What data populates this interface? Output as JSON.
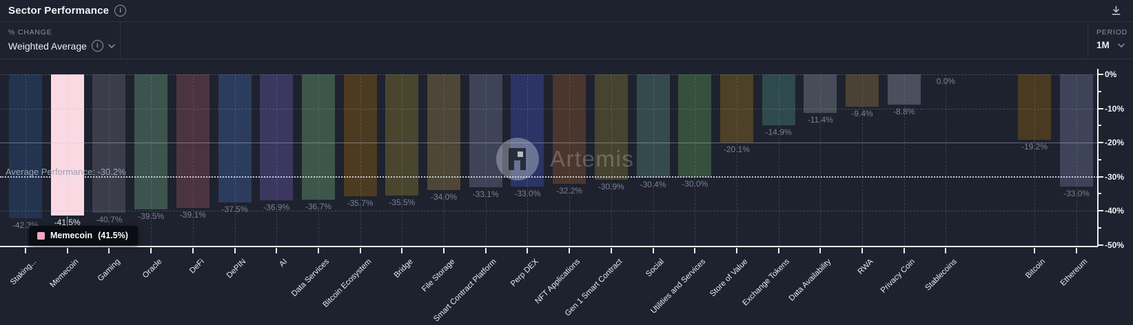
{
  "header": {
    "title": "Sector Performance",
    "title_info_icon": "i",
    "download_icon": "download-arrow"
  },
  "controls": {
    "change_label": "% CHANGE",
    "change_value": "Weighted Average",
    "change_info_icon": "i",
    "period_label": "PERIOD",
    "period_value": "1M"
  },
  "watermark": {
    "text": "Artemis"
  },
  "tooltip": {
    "name": "Memecoin",
    "value_display": "(41.5%)",
    "swatch_color": "#F2A8BC"
  },
  "average_line": {
    "label": "Average Performance: -30.2%",
    "value": -30.2
  },
  "chart_data": {
    "type": "bar",
    "title": "Sector Performance",
    "aggregation": "Weighted Average",
    "period": "1M",
    "ylabel": "% change",
    "ylim": [
      -50,
      0
    ],
    "y_ticks": [
      "0%",
      "-10%",
      "-20%",
      "-30%",
      "-40%",
      "-50%"
    ],
    "grid": "dashed horizontal and vertical, solid line at -20%",
    "average_performance": -30.2,
    "bars": [
      {
        "label": "Staking...",
        "value": -42.3,
        "display": "-42.3%",
        "color": "#24334F"
      },
      {
        "label": "Memecoin",
        "value": -41.5,
        "display": "-41.5%",
        "color": "#FBD9E3",
        "highlight": true
      },
      {
        "label": "Gaming",
        "value": -40.7,
        "display": "-40.7%",
        "color": "#3C3D4B"
      },
      {
        "label": "Oracle",
        "value": -39.5,
        "display": "-39.5%",
        "color": "#3C544E"
      },
      {
        "label": "DeFi",
        "value": -39.1,
        "display": "-39.1%",
        "color": "#4C343E"
      },
      {
        "label": "DePIN",
        "value": -37.5,
        "display": "-37.5%",
        "color": "#2C3C5F"
      },
      {
        "label": "AI",
        "value": -36.9,
        "display": "-36.9%",
        "color": "#3B3760"
      },
      {
        "label": "Data Services",
        "value": -36.7,
        "display": "-36.7%",
        "color": "#3D564A"
      },
      {
        "label": "Bitcoin Ecosystem",
        "value": -35.7,
        "display": "-35.7%",
        "color": "#4D3B21"
      },
      {
        "label": "Bridge",
        "value": -35.5,
        "display": "-35.5%",
        "color": "#4A452D"
      },
      {
        "label": "File Storage",
        "value": -34.0,
        "display": "-34.0%",
        "color": "#4E4636"
      },
      {
        "label": "Smart Contract Platform",
        "value": -33.1,
        "display": "-33.1%",
        "color": "#3E4357"
      },
      {
        "label": "Perp DEX",
        "value": -33.0,
        "display": "-33.0%",
        "color": "#2B3464"
      },
      {
        "label": "NFT Applications",
        "value": -32.2,
        "display": "-32.2%",
        "color": "#4B362E"
      },
      {
        "label": "Gen 1 Smart Contract",
        "value": -30.9,
        "display": "-30.9%",
        "color": "#464330"
      },
      {
        "label": "Social",
        "value": -30.4,
        "display": "-30.4%",
        "color": "#354A4C"
      },
      {
        "label": "Utilities and Services",
        "value": -30.0,
        "display": "-30.0%",
        "color": "#35503D"
      },
      {
        "label": "Store of Value",
        "value": -20.1,
        "display": "-20.1%",
        "color": "#4E4128"
      },
      {
        "label": "Exchange Tokens",
        "value": -14.9,
        "display": "-14.9%",
        "color": "#2F4A4D"
      },
      {
        "label": "Data Availability",
        "value": -11.4,
        "display": "-11.4%",
        "color": "#474C59"
      },
      {
        "label": "RWA",
        "value": -9.4,
        "display": "-9.4%",
        "color": "#4A4234"
      },
      {
        "label": "Privacy Coin",
        "value": -8.8,
        "display": "-8.8%",
        "color": "#4A4F5D"
      },
      {
        "label": "Stablecoins",
        "value": 0.0,
        "display": "0.0%",
        "color": "#4A4F5D"
      },
      {
        "label": "Bitcoin",
        "value": -19.2,
        "display": "-19.2%",
        "color": "#4A3A22",
        "group": "benchmark"
      },
      {
        "label": "Ethereum",
        "value": -33.0,
        "display": "-33.0%",
        "color": "#3E4359",
        "group": "benchmark"
      }
    ]
  }
}
